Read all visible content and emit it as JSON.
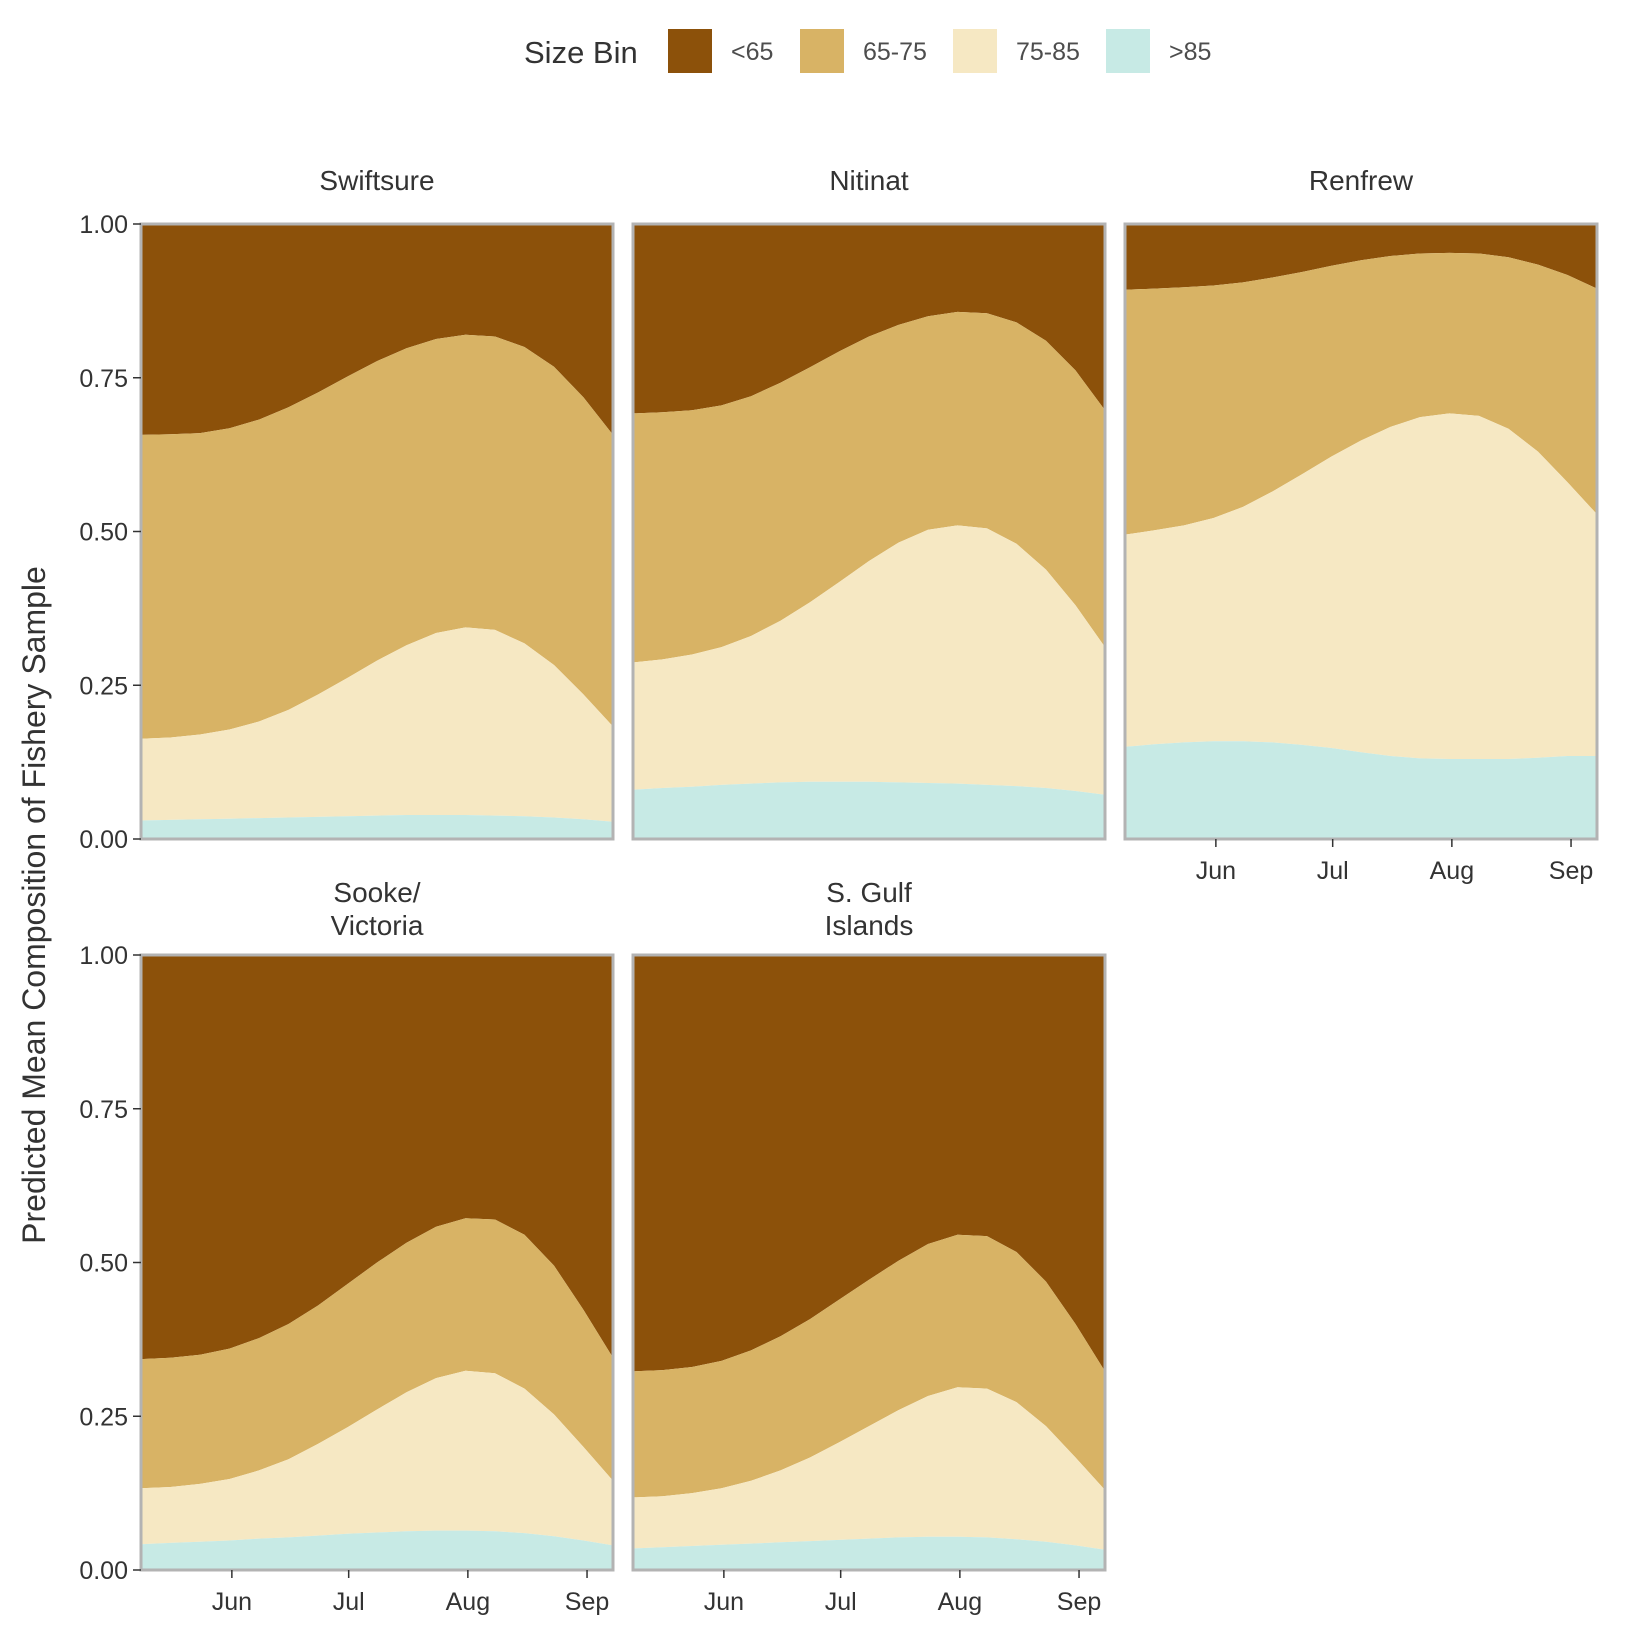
{
  "chart_data": {
    "type": "area",
    "stacked": true,
    "ylabel": "Predicted Mean Composition of Fishery Sample",
    "xlabel": "",
    "ylim": [
      0,
      1
    ],
    "yticks": [
      "0.00",
      "0.25",
      "0.50",
      "0.75",
      "1.00"
    ],
    "xlim": [
      0,
      4
    ],
    "xticks": [
      {
        "label": "Jun",
        "x": 0.77
      },
      {
        "label": "Jul",
        "x": 1.76
      },
      {
        "label": "Aug",
        "x": 2.77
      },
      {
        "label": "Sep",
        "x": 3.78
      }
    ],
    "legend": {
      "title": "Size Bin",
      "position": "top",
      "entries": [
        {
          "label": "<65",
          "color": "#8C510A"
        },
        {
          "label": "65-75",
          "color": "#D8B365"
        },
        {
          "label": "75-85",
          "color": "#F6E8C3"
        },
        {
          "label": ">85",
          "color": "#C7EAE5"
        }
      ]
    },
    "x": [
      0,
      0.25,
      0.5,
      0.75,
      1,
      1.25,
      1.5,
      1.75,
      2,
      2.25,
      2.5,
      2.75,
      3,
      3.25,
      3.5,
      3.75,
      4
    ],
    "panels": [
      {
        "title": "Swiftsure",
        "cumulative": {
          ">85": [
            0.03,
            0.031,
            0.032,
            0.033,
            0.034,
            0.035,
            0.036,
            0.037,
            0.038,
            0.039,
            0.039,
            0.039,
            0.038,
            0.037,
            0.035,
            0.032,
            0.028
          ],
          "75-85": [
            0.163,
            0.165,
            0.17,
            0.178,
            0.191,
            0.21,
            0.235,
            0.262,
            0.29,
            0.315,
            0.335,
            0.344,
            0.34,
            0.318,
            0.283,
            0.235,
            0.183
          ],
          "65-75": [
            0.657,
            0.658,
            0.66,
            0.668,
            0.682,
            0.702,
            0.726,
            0.752,
            0.777,
            0.798,
            0.813,
            0.82,
            0.817,
            0.8,
            0.768,
            0.718,
            0.657
          ]
        }
      },
      {
        "title": "Nitinat",
        "cumulative": {
          ">85": [
            0.08,
            0.083,
            0.085,
            0.088,
            0.09,
            0.092,
            0.093,
            0.093,
            0.093,
            0.092,
            0.091,
            0.09,
            0.088,
            0.086,
            0.083,
            0.078,
            0.072
          ],
          "75-85": [
            0.287,
            0.292,
            0.3,
            0.312,
            0.33,
            0.355,
            0.385,
            0.418,
            0.452,
            0.482,
            0.503,
            0.51,
            0.505,
            0.48,
            0.438,
            0.38,
            0.312
          ],
          "65-75": [
            0.692,
            0.694,
            0.697,
            0.705,
            0.72,
            0.742,
            0.767,
            0.793,
            0.817,
            0.836,
            0.85,
            0.857,
            0.855,
            0.84,
            0.81,
            0.762,
            0.697
          ]
        }
      },
      {
        "title": "Renfrew",
        "cumulative": {
          ">85": [
            0.15,
            0.154,
            0.157,
            0.159,
            0.159,
            0.157,
            0.153,
            0.148,
            0.141,
            0.135,
            0.131,
            0.13,
            0.13,
            0.13,
            0.132,
            0.135,
            0.135
          ],
          "75-85": [
            0.495,
            0.502,
            0.51,
            0.522,
            0.54,
            0.565,
            0.593,
            0.622,
            0.648,
            0.67,
            0.686,
            0.692,
            0.688,
            0.667,
            0.63,
            0.58,
            0.528
          ],
          "65-75": [
            0.893,
            0.895,
            0.897,
            0.9,
            0.905,
            0.913,
            0.922,
            0.932,
            0.941,
            0.948,
            0.952,
            0.953,
            0.952,
            0.946,
            0.934,
            0.917,
            0.895
          ]
        }
      },
      {
        "title": "Sooke/\nVictoria",
        "cumulative": {
          ">85": [
            0.042,
            0.044,
            0.046,
            0.048,
            0.051,
            0.053,
            0.056,
            0.059,
            0.061,
            0.063,
            0.064,
            0.064,
            0.063,
            0.06,
            0.055,
            0.048,
            0.04
          ],
          "75-85": [
            0.133,
            0.135,
            0.14,
            0.148,
            0.162,
            0.18,
            0.205,
            0.232,
            0.261,
            0.289,
            0.312,
            0.324,
            0.32,
            0.295,
            0.253,
            0.2,
            0.145
          ],
          "65-75": [
            0.343,
            0.345,
            0.35,
            0.36,
            0.377,
            0.4,
            0.43,
            0.465,
            0.5,
            0.532,
            0.558,
            0.572,
            0.57,
            0.545,
            0.495,
            0.423,
            0.345
          ]
        }
      },
      {
        "title": "S. Gulf\nIslands",
        "cumulative": {
          ">85": [
            0.035,
            0.037,
            0.039,
            0.041,
            0.043,
            0.045,
            0.047,
            0.049,
            0.051,
            0.053,
            0.054,
            0.054,
            0.053,
            0.05,
            0.046,
            0.04,
            0.033
          ],
          "75-85": [
            0.118,
            0.12,
            0.125,
            0.133,
            0.145,
            0.162,
            0.183,
            0.208,
            0.234,
            0.26,
            0.283,
            0.297,
            0.295,
            0.273,
            0.234,
            0.183,
            0.13
          ],
          "65-75": [
            0.323,
            0.325,
            0.33,
            0.34,
            0.357,
            0.38,
            0.408,
            0.44,
            0.472,
            0.503,
            0.53,
            0.545,
            0.543,
            0.517,
            0.469,
            0.4,
            0.323
          ]
        }
      }
    ]
  }
}
